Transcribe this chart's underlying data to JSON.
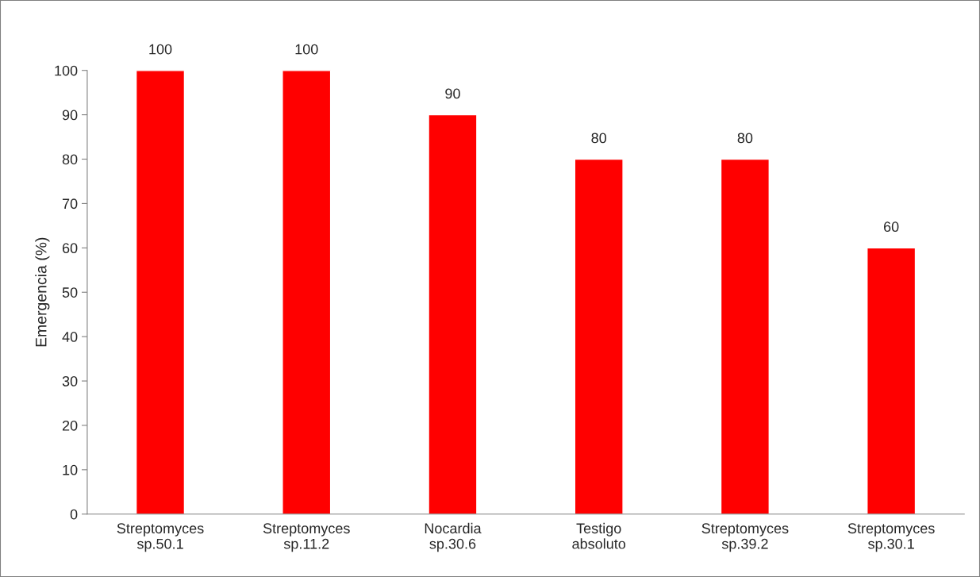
{
  "chart_data": {
    "type": "bar",
    "ylabel": "Emergencia (%)",
    "categories": [
      "Streptomyces\nsp.50.1",
      "Streptomyces\nsp.11.2",
      "Nocardia\nsp.30.6",
      "Testigo\nabsoluto",
      "Streptomyces\nsp.39.2",
      "Streptomyces\nsp.30.1"
    ],
    "values": [
      100,
      100,
      90,
      80,
      80,
      60
    ],
    "color": "#ff0000",
    "ylim": [
      0,
      100
    ],
    "yticks": [
      0,
      10,
      20,
      30,
      40,
      50,
      60,
      70,
      80,
      90,
      100
    ],
    "data_labels": true,
    "grid": false,
    "legend": false
  }
}
